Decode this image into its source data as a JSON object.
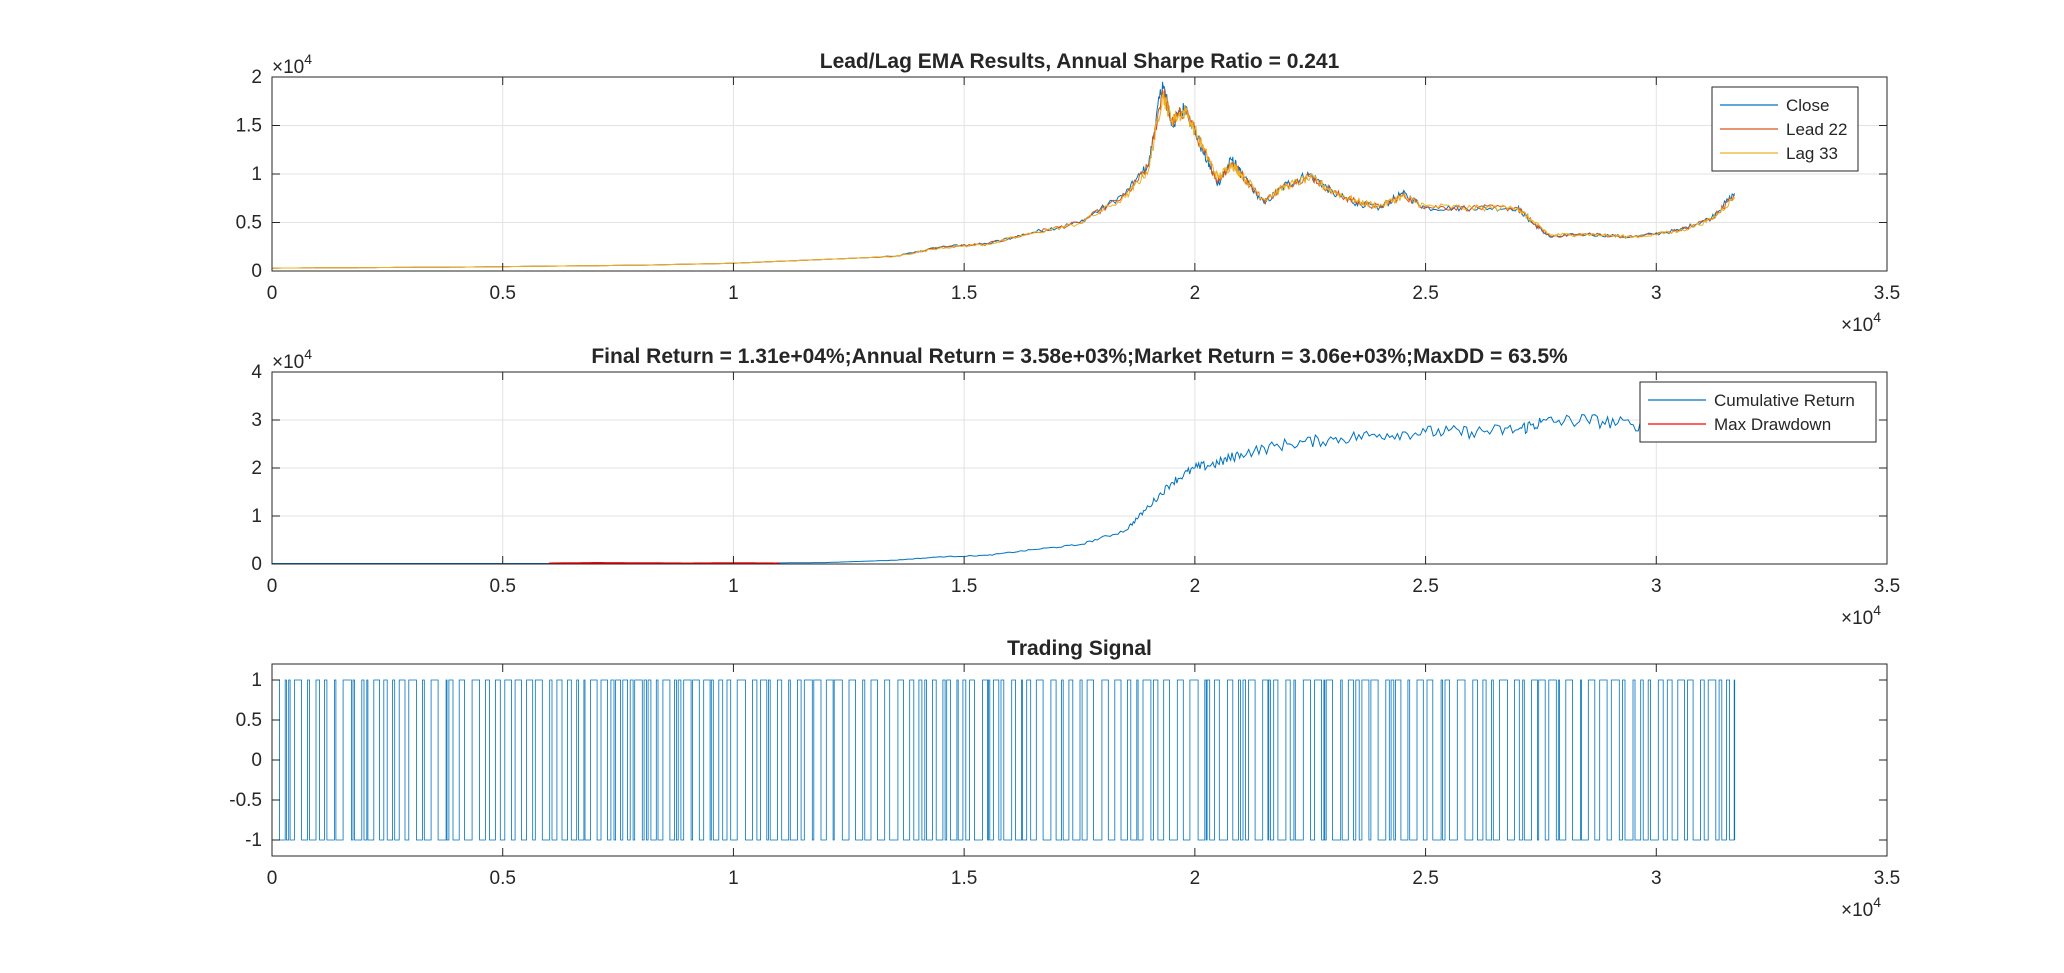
{
  "chart_data": [
    {
      "type": "line",
      "title": "Lead/Lag EMA Results, Annual Sharpe Ratio = 0.241",
      "xlim": [
        0,
        35000
      ],
      "ylim": [
        0,
        20000
      ],
      "x_ticks": [
        "0",
        "0.5",
        "1",
        "1.5",
        "2",
        "2.5",
        "3",
        "3.5"
      ],
      "y_ticks": [
        "0",
        "0.5",
        "1",
        "1.5",
        "2"
      ],
      "x_multiplier": "×10",
      "y_multiplier": "×10",
      "exponent": "4",
      "grid": true,
      "legend_position": "top-right",
      "series": [
        {
          "name": "Close",
          "color": "#0072BD",
          "points": [
            [
              0,
              300
            ],
            [
              2000,
              350
            ],
            [
              4000,
              400
            ],
            [
              6000,
              500
            ],
            [
              8000,
              600
            ],
            [
              10000,
              800
            ],
            [
              12000,
              1200
            ],
            [
              13500,
              1500
            ],
            [
              14500,
              2500
            ],
            [
              15500,
              2800
            ],
            [
              16500,
              4000
            ],
            [
              17500,
              5000
            ],
            [
              18500,
              8000
            ],
            [
              19000,
              11000
            ],
            [
              19300,
              19500
            ],
            [
              19500,
              15000
            ],
            [
              19800,
              17000
            ],
            [
              20200,
              12000
            ],
            [
              20500,
              9000
            ],
            [
              20800,
              11500
            ],
            [
              21000,
              10000
            ],
            [
              21500,
              7000
            ],
            [
              22000,
              9000
            ],
            [
              22500,
              10000
            ],
            [
              23000,
              8000
            ],
            [
              23500,
              7000
            ],
            [
              24000,
              6500
            ],
            [
              24500,
              8000
            ],
            [
              25000,
              6500
            ],
            [
              26000,
              6500
            ],
            [
              27000,
              6500
            ],
            [
              27300,
              5000
            ],
            [
              27700,
              3500
            ],
            [
              28500,
              3800
            ],
            [
              29500,
              3500
            ],
            [
              30500,
              4200
            ],
            [
              31200,
              5500
            ],
            [
              31700,
              8000
            ]
          ]
        },
        {
          "name": "Lead 22",
          "color": "#D95319",
          "points": [
            [
              0,
              300
            ],
            [
              2000,
              350
            ],
            [
              4000,
              400
            ],
            [
              6000,
              500
            ],
            [
              8000,
              600
            ],
            [
              10000,
              800
            ],
            [
              12000,
              1200
            ],
            [
              13500,
              1500
            ],
            [
              14500,
              2450
            ],
            [
              15500,
              2780
            ],
            [
              16500,
              3950
            ],
            [
              17500,
              4950
            ],
            [
              18500,
              7800
            ],
            [
              19000,
              10800
            ],
            [
              19300,
              18700
            ],
            [
              19500,
              15300
            ],
            [
              19800,
              16700
            ],
            [
              20200,
              12200
            ],
            [
              20500,
              9300
            ],
            [
              20800,
              11200
            ],
            [
              21000,
              10000
            ],
            [
              21500,
              7200
            ],
            [
              22000,
              8900
            ],
            [
              22500,
              9800
            ],
            [
              23000,
              8100
            ],
            [
              23500,
              7100
            ],
            [
              24000,
              6600
            ],
            [
              24500,
              7800
            ],
            [
              25000,
              6600
            ],
            [
              26000,
              6500
            ],
            [
              27000,
              6500
            ],
            [
              27300,
              5100
            ],
            [
              27700,
              3600
            ],
            [
              28500,
              3800
            ],
            [
              29500,
              3500
            ],
            [
              30500,
              4200
            ],
            [
              31200,
              5400
            ],
            [
              31700,
              7800
            ]
          ]
        },
        {
          "name": "Lag 33",
          "color": "#EDB120",
          "points": [
            [
              0,
              300
            ],
            [
              2000,
              350
            ],
            [
              4000,
              400
            ],
            [
              6000,
              500
            ],
            [
              8000,
              600
            ],
            [
              10000,
              800
            ],
            [
              12000,
              1200
            ],
            [
              13500,
              1500
            ],
            [
              14500,
              2400
            ],
            [
              15500,
              2750
            ],
            [
              16500,
              3900
            ],
            [
              17500,
              4900
            ],
            [
              18500,
              7600
            ],
            [
              19000,
              10500
            ],
            [
              19300,
              18200
            ],
            [
              19500,
              15600
            ],
            [
              19800,
              16500
            ],
            [
              20200,
              12500
            ],
            [
              20500,
              9600
            ],
            [
              20800,
              11000
            ],
            [
              21000,
              10000
            ],
            [
              21500,
              7400
            ],
            [
              22000,
              8800
            ],
            [
              22500,
              9600
            ],
            [
              23000,
              8200
            ],
            [
              23500,
              7200
            ],
            [
              24000,
              6700
            ],
            [
              24500,
              7700
            ],
            [
              25000,
              6700
            ],
            [
              26000,
              6500
            ],
            [
              27000,
              6500
            ],
            [
              27300,
              5200
            ],
            [
              27700,
              3700
            ],
            [
              28500,
              3800
            ],
            [
              29500,
              3500
            ],
            [
              30500,
              4100
            ],
            [
              31200,
              5300
            ],
            [
              31700,
              7600
            ]
          ]
        }
      ]
    },
    {
      "type": "line",
      "title": "Final Return = 1.31e+04%;Annual Return = 3.58e+03%;Market Return = 3.06e+03%;MaxDD = 63.5%",
      "xlim": [
        0,
        35000
      ],
      "ylim": [
        0,
        40000
      ],
      "x_ticks": [
        "0",
        "0.5",
        "1",
        "1.5",
        "2",
        "2.5",
        "3",
        "3.5"
      ],
      "y_ticks": [
        "0",
        "1",
        "2",
        "3",
        "4"
      ],
      "x_multiplier": "×10",
      "y_multiplier": "×10",
      "exponent": "4",
      "grid": true,
      "legend_position": "top-right",
      "series": [
        {
          "name": "Cumulative Return",
          "color": "#0072BD",
          "points": [
            [
              0,
              100
            ],
            [
              5000,
              100
            ],
            [
              10000,
              150
            ],
            [
              12000,
              300
            ],
            [
              13500,
              800
            ],
            [
              14500,
              1500
            ],
            [
              15500,
              1800
            ],
            [
              16500,
              3000
            ],
            [
              17500,
              4000
            ],
            [
              18500,
              7000
            ],
            [
              19000,
              12000
            ],
            [
              19500,
              17000
            ],
            [
              20000,
              20000
            ],
            [
              20500,
              21000
            ],
            [
              21000,
              23000
            ],
            [
              22000,
              25000
            ],
            [
              23000,
              26000
            ],
            [
              24000,
              27000
            ],
            [
              25000,
              27500
            ],
            [
              26000,
              27500
            ],
            [
              27000,
              28000
            ],
            [
              27500,
              29500
            ],
            [
              28500,
              30000
            ],
            [
              29500,
              29000
            ],
            [
              30500,
              30000
            ],
            [
              31500,
              30500
            ],
            [
              31700,
              30500
            ]
          ]
        },
        {
          "name": "Max Drawdown",
          "color": "#FF0000",
          "points": [
            [
              6000,
              150
            ],
            [
              7000,
              250
            ],
            [
              8000,
              200
            ],
            [
              9000,
              150
            ],
            [
              10000,
              200
            ],
            [
              11000,
              150
            ]
          ]
        }
      ]
    },
    {
      "type": "line",
      "title": "Trading Signal",
      "xlim": [
        0,
        35000
      ],
      "ylim": [
        -1.2,
        1.2
      ],
      "x_ticks": [
        "0",
        "0.5",
        "1",
        "1.5",
        "2",
        "2.5",
        "3",
        "3.5"
      ],
      "y_ticks": [
        "-1",
        "-0.5",
        "0",
        "0.5",
        "1"
      ],
      "x_multiplier": "×10",
      "exponent": "4",
      "grid": false,
      "signal_values": [
        -1,
        1
      ],
      "signal_x_range": [
        0,
        31700
      ],
      "series": [
        {
          "name": "",
          "color": "#0072BD"
        }
      ]
    }
  ]
}
